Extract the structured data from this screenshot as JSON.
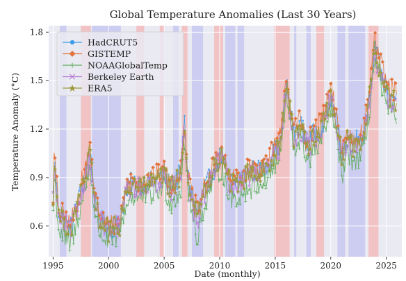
{
  "chart_data": {
    "type": "line",
    "title": "Global Temperature Anomalies (Last 30 Years)",
    "xlabel": "Date (monthly)",
    "ylabel": "Temperature Anomaly (°C)",
    "xlim": [
      1994.6,
      2026.4
    ],
    "ylim": [
      0.41,
      1.84
    ],
    "x_ticks": [
      1995,
      2000,
      2005,
      2010,
      2015,
      2020,
      2025
    ],
    "y_ticks": [
      0.6,
      0.9,
      1.2,
      1.5,
      1.8
    ],
    "y_tick_labels": [
      "0.6",
      "0.9",
      "1.2",
      "1.5",
      "1.8"
    ],
    "grid": true,
    "legend_position": "top-left",
    "background_color": "#eaeaf2",
    "shaded_periods": {
      "el_nino_color": "#f4b6b6",
      "la_nina_color": "#b9b9f0",
      "el_nino": [
        [
          1997.5,
          1998.4
        ],
        [
          2002.5,
          2003.2
        ],
        [
          2004.6,
          2005.0
        ],
        [
          2006.6,
          2007.1
        ],
        [
          2009.5,
          2010.3
        ],
        [
          2014.9,
          2016.3
        ],
        [
          2018.7,
          2019.4
        ],
        [
          2023.4,
          2024.3
        ]
      ],
      "la_nina": [
        [
          1995.6,
          1996.2
        ],
        [
          1998.5,
          2001.1
        ],
        [
          2005.8,
          2006.3
        ],
        [
          2007.5,
          2008.5
        ],
        [
          2010.5,
          2011.4
        ],
        [
          2011.6,
          2012.2
        ],
        [
          2016.7,
          2016.9
        ],
        [
          2017.8,
          2018.2
        ],
        [
          2020.6,
          2021.3
        ],
        [
          2021.6,
          2023.1
        ]
      ]
    },
    "series": [
      {
        "name": "HadCRUT5",
        "color": "#3b9ee8",
        "marker": "circle",
        "anchors_x": [
          1995.0,
          1995.1,
          1995.5,
          1996.0,
          1996.5,
          1997.0,
          1997.6,
          1998.0,
          1998.3,
          1998.8,
          1999.3,
          2000.0,
          2000.5,
          2001.0,
          2001.5,
          2002.0,
          2003.0,
          2004.0,
          2005.0,
          2005.6,
          2006.5,
          2006.8,
          2007.2,
          2008.0,
          2008.5,
          2009.0,
          2009.5,
          2010.2,
          2010.7,
          2011.2,
          2012.0,
          2012.8,
          2013.5,
          2014.0,
          2014.8,
          2015.5,
          2016.0,
          2016.2,
          2016.7,
          2017.2,
          2018.0,
          2018.5,
          2019.0,
          2019.5,
          2020.0,
          2020.5,
          2021.0,
          2021.5,
          2022.0,
          2022.5,
          2023.0,
          2023.5,
          2023.9,
          2024.3,
          2024.8,
          2025.3,
          2025.9
        ],
        "anchors_y": [
          0.78,
          1.01,
          0.69,
          0.64,
          0.58,
          0.68,
          0.85,
          0.96,
          1.07,
          0.73,
          0.64,
          0.58,
          0.6,
          0.62,
          0.8,
          0.86,
          0.86,
          0.88,
          0.92,
          0.84,
          0.92,
          1.26,
          0.86,
          0.66,
          0.8,
          0.88,
          0.96,
          1.04,
          0.9,
          0.86,
          0.9,
          0.94,
          0.94,
          0.96,
          1.04,
          1.12,
          1.5,
          1.38,
          1.16,
          1.24,
          1.1,
          1.18,
          1.2,
          1.28,
          1.38,
          1.25,
          1.05,
          1.16,
          1.12,
          1.14,
          1.18,
          1.42,
          1.7,
          1.62,
          1.48,
          1.42,
          1.4
        ]
      },
      {
        "name": "GISTEMP",
        "color": "#e2743e",
        "marker": "diamond",
        "anchors_x": [
          1995.0,
          1995.1,
          1995.5,
          1996.0,
          1996.5,
          1997.0,
          1997.6,
          1998.0,
          1998.3,
          1998.8,
          1999.3,
          2000.0,
          2000.5,
          2001.0,
          2001.5,
          2002.0,
          2003.0,
          2004.0,
          2005.0,
          2005.6,
          2006.5,
          2006.8,
          2007.2,
          2008.0,
          2008.5,
          2009.0,
          2009.5,
          2010.2,
          2010.7,
          2011.2,
          2012.0,
          2012.8,
          2013.5,
          2014.0,
          2014.8,
          2015.5,
          2016.0,
          2016.2,
          2016.7,
          2017.2,
          2018.0,
          2018.5,
          2019.0,
          2019.5,
          2020.0,
          2020.5,
          2021.0,
          2021.5,
          2022.0,
          2022.5,
          2023.0,
          2023.5,
          2023.9,
          2024.3,
          2024.8,
          2025.3,
          2025.9
        ],
        "anchors_y": [
          0.8,
          1.05,
          0.7,
          0.66,
          0.6,
          0.7,
          0.88,
          0.98,
          1.1,
          0.76,
          0.66,
          0.6,
          0.62,
          0.64,
          0.82,
          0.88,
          0.88,
          0.9,
          0.94,
          0.86,
          0.94,
          1.27,
          0.88,
          0.68,
          0.82,
          0.9,
          0.98,
          1.08,
          0.92,
          0.88,
          0.92,
          0.96,
          0.96,
          0.98,
          1.07,
          1.16,
          1.55,
          1.42,
          1.18,
          1.27,
          1.12,
          1.2,
          1.24,
          1.3,
          1.46,
          1.28,
          1.08,
          1.18,
          1.14,
          1.16,
          1.2,
          1.46,
          1.78,
          1.66,
          1.52,
          1.44,
          1.44
        ]
      },
      {
        "name": "NOAAGlobalTemp",
        "color": "#5cac5c",
        "marker": "plus",
        "anchors_x": [
          1995.0,
          1995.1,
          1995.5,
          1996.0,
          1996.5,
          1997.0,
          1997.6,
          1998.0,
          1998.3,
          1998.8,
          1999.3,
          2000.0,
          2000.5,
          2001.0,
          2001.5,
          2002.0,
          2003.0,
          2004.0,
          2005.0,
          2005.6,
          2006.5,
          2006.8,
          2007.2,
          2008.0,
          2008.5,
          2009.0,
          2009.5,
          2010.2,
          2010.7,
          2011.2,
          2012.0,
          2012.8,
          2013.5,
          2014.0,
          2014.8,
          2015.5,
          2016.0,
          2016.2,
          2016.7,
          2017.2,
          2018.0,
          2018.5,
          2019.0,
          2019.5,
          2020.0,
          2020.5,
          2021.0,
          2021.5,
          2022.0,
          2022.5,
          2023.0,
          2023.5,
          2023.9,
          2024.3,
          2024.8,
          2025.3,
          2025.9
        ],
        "anchors_y": [
          0.7,
          0.92,
          0.58,
          0.52,
          0.48,
          0.58,
          0.75,
          0.86,
          0.98,
          0.64,
          0.55,
          0.5,
          0.52,
          0.56,
          0.72,
          0.78,
          0.78,
          0.8,
          0.84,
          0.74,
          0.82,
          1.16,
          0.78,
          0.52,
          0.7,
          0.8,
          0.88,
          0.96,
          0.82,
          0.76,
          0.8,
          0.84,
          0.86,
          0.88,
          0.95,
          1.04,
          1.4,
          1.3,
          1.06,
          1.14,
          1.0,
          1.08,
          1.1,
          1.18,
          1.34,
          1.16,
          0.9,
          1.06,
          1.0,
          1.02,
          1.06,
          1.32,
          1.62,
          1.54,
          1.38,
          1.3,
          1.3
        ]
      },
      {
        "name": "Berkeley Earth",
        "color": "#b57bd8",
        "marker": "cross",
        "anchors_x": [
          1995.0,
          1995.1,
          1995.5,
          1996.0,
          1996.5,
          1997.0,
          1997.6,
          1998.0,
          1998.3,
          1998.8,
          1999.3,
          2000.0,
          2000.5,
          2001.0,
          2001.5,
          2002.0,
          2003.0,
          2004.0,
          2005.0,
          2005.6,
          2006.5,
          2006.8,
          2007.2,
          2008.0,
          2008.5,
          2009.0,
          2009.5,
          2010.2,
          2010.7,
          2011.2,
          2012.0,
          2012.8,
          2013.5,
          2014.0,
          2014.8,
          2015.5,
          2016.0,
          2016.2,
          2016.7,
          2017.2,
          2018.0,
          2018.5,
          2019.0,
          2019.5,
          2020.0,
          2020.5,
          2021.0,
          2021.5,
          2022.0,
          2022.5,
          2023.0,
          2023.5,
          2023.9,
          2024.3,
          2024.8,
          2025.3,
          2025.9
        ],
        "anchors_y": [
          0.76,
          0.98,
          0.66,
          0.62,
          0.56,
          0.66,
          0.82,
          0.94,
          1.04,
          0.7,
          0.62,
          0.56,
          0.58,
          0.6,
          0.78,
          0.84,
          0.84,
          0.86,
          0.9,
          0.82,
          0.9,
          1.22,
          0.84,
          0.62,
          0.78,
          0.86,
          0.94,
          1.02,
          0.88,
          0.84,
          0.88,
          0.92,
          0.92,
          0.94,
          1.02,
          1.1,
          1.46,
          1.36,
          1.12,
          1.2,
          1.08,
          1.14,
          1.18,
          1.26,
          1.4,
          1.22,
          1.02,
          1.12,
          1.08,
          1.1,
          1.14,
          1.4,
          1.68,
          1.58,
          1.46,
          1.38,
          1.36
        ]
      },
      {
        "name": "ERA5",
        "color": "#9c9a3c",
        "marker": "star",
        "anchors_x": [
          1995.0,
          1995.1,
          1995.5,
          1996.0,
          1996.5,
          1997.0,
          1997.6,
          1998.0,
          1998.3,
          1998.8,
          1999.3,
          2000.0,
          2000.5,
          2001.0,
          2001.5,
          2002.0,
          2003.0,
          2004.0,
          2005.0,
          2005.6,
          2006.5,
          2006.8,
          2007.2,
          2008.0,
          2008.5,
          2009.0,
          2009.5,
          2010.2,
          2010.7,
          2011.2,
          2012.0,
          2012.8,
          2013.5,
          2014.0,
          2014.8,
          2015.5,
          2016.0,
          2016.2,
          2016.7,
          2017.2,
          2018.0,
          2018.5,
          2019.0,
          2019.5,
          2020.0,
          2020.5,
          2021.0,
          2021.5,
          2022.0,
          2022.5,
          2023.0,
          2023.5,
          2023.9,
          2024.3,
          2024.8,
          2025.3,
          2025.9
        ],
        "anchors_y": [
          0.77,
          0.99,
          0.67,
          0.63,
          0.57,
          0.67,
          0.84,
          0.95,
          1.06,
          0.72,
          0.63,
          0.57,
          0.59,
          0.61,
          0.79,
          0.85,
          0.85,
          0.87,
          0.91,
          0.83,
          0.91,
          1.24,
          0.85,
          0.64,
          0.79,
          0.87,
          0.95,
          1.03,
          0.89,
          0.85,
          0.89,
          0.93,
          0.93,
          0.95,
          1.03,
          1.11,
          1.48,
          1.37,
          1.14,
          1.22,
          1.09,
          1.16,
          1.19,
          1.27,
          1.39,
          1.24,
          1.04,
          1.14,
          1.1,
          1.12,
          1.16,
          1.41,
          1.69,
          1.6,
          1.47,
          1.4,
          1.38
        ]
      }
    ]
  }
}
